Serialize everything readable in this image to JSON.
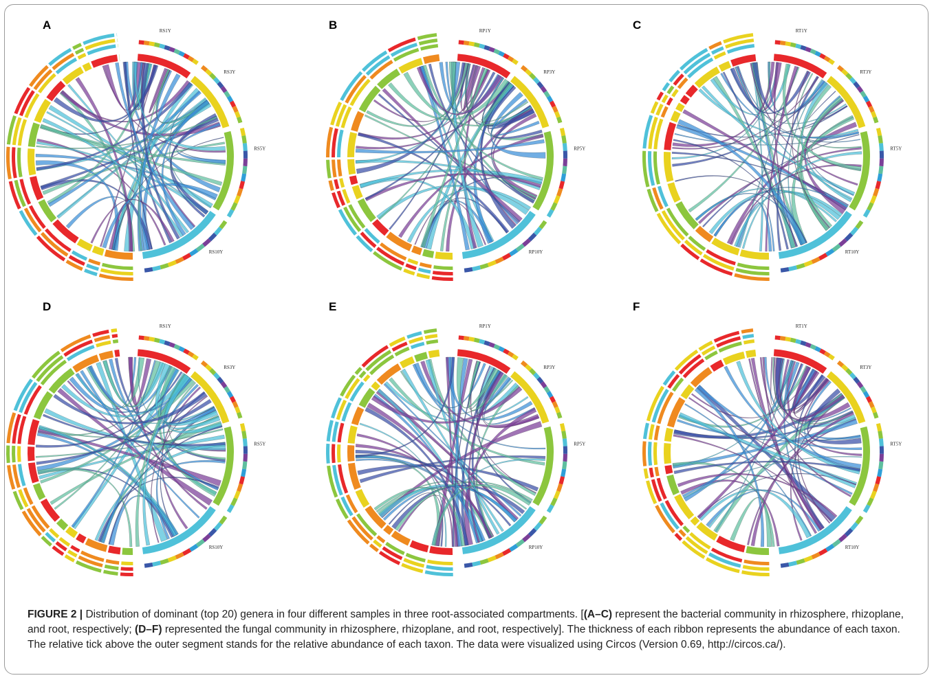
{
  "figure": {
    "panels": [
      {
        "letter": "A",
        "samples": [
          "RS1Y",
          "RS3Y",
          "RS5Y",
          "RS10Y"
        ]
      },
      {
        "letter": "B",
        "samples": [
          "RP1Y",
          "RP3Y",
          "RP5Y",
          "RP10Y"
        ]
      },
      {
        "letter": "C",
        "samples": [
          "RT1Y",
          "RT3Y",
          "RT5Y",
          "RT10Y"
        ]
      },
      {
        "letter": "D",
        "samples": [
          "RS1Y",
          "RS3Y",
          "RS5Y",
          "RS10Y"
        ]
      },
      {
        "letter": "E",
        "samples": [
          "RP1Y",
          "RP3Y",
          "RP5Y",
          "RP10Y"
        ]
      },
      {
        "letter": "F",
        "samples": [
          "RT1Y",
          "RT3Y",
          "RT5Y",
          "RT10Y"
        ]
      }
    ],
    "caption": {
      "label": "FIGURE 2 |",
      "text1": " Distribution of dominant (top 20) genera in four different samples in three root-associated compartments. [",
      "bold1": "(A–C)",
      "text2": " represent the bacterial community in rhizosphere, rhizoplane, and root, respectively; ",
      "bold2": "(D–F)",
      "text3": " represented the fungal community in rhizosphere, rhizoplane, and root, respectively]. The thickness of each ribbon represents the abundance of each taxon. The relative tick above the outer segment stands for the relative abundance of each taxon. The data were visualized using Circos (Version 0.69, http://circos.ca/)."
    }
  }
}
